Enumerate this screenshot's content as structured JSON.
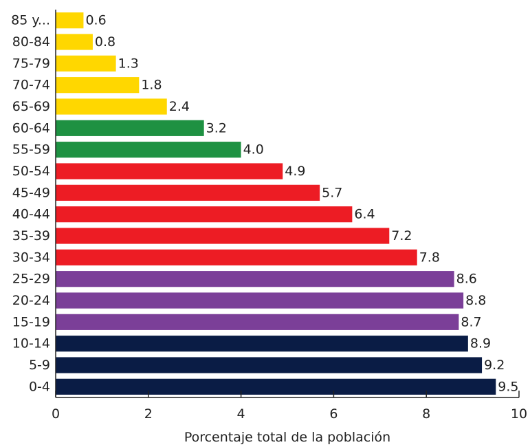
{
  "chart_data": {
    "type": "bar",
    "orientation": "horizontal",
    "xlabel": "Porcentaje total de la población",
    "xlim": [
      0,
      10
    ],
    "x_ticks": [
      "0",
      "2",
      "4",
      "6",
      "8",
      "10"
    ],
    "grid": false,
    "categories": [
      "85 y...",
      "80-84",
      "75-79",
      "70-74",
      "65-69",
      "60-64",
      "55-59",
      "50-54",
      "45-49",
      "40-44",
      "35-39",
      "30-34",
      "25-29",
      "20-24",
      "15-19",
      "10-14",
      "5-9",
      "0-4"
    ],
    "values": [
      0.6,
      0.8,
      1.3,
      1.8,
      2.4,
      3.2,
      4.0,
      4.9,
      5.7,
      6.4,
      7.2,
      7.8,
      8.6,
      8.8,
      8.7,
      8.9,
      9.2,
      9.5
    ],
    "value_labels": [
      "0.6",
      "0.8",
      "1.3",
      "1.8",
      "2.4",
      "3.2",
      "4.0",
      "4.9",
      "5.7",
      "6.4",
      "7.2",
      "7.8",
      "8.6",
      "8.8",
      "8.7",
      "8.9",
      "9.2",
      "9.5"
    ],
    "bar_colors": [
      "#FFD700",
      "#FFD700",
      "#FFD700",
      "#FFD700",
      "#FFD700",
      "#1E9142",
      "#1E9142",
      "#ED1C24",
      "#ED1C24",
      "#ED1C24",
      "#ED1C24",
      "#ED1C24",
      "#7B3F98",
      "#7B3F98",
      "#7B3F98",
      "#0A1C45",
      "#0A1C45",
      "#0A1C45"
    ]
  }
}
